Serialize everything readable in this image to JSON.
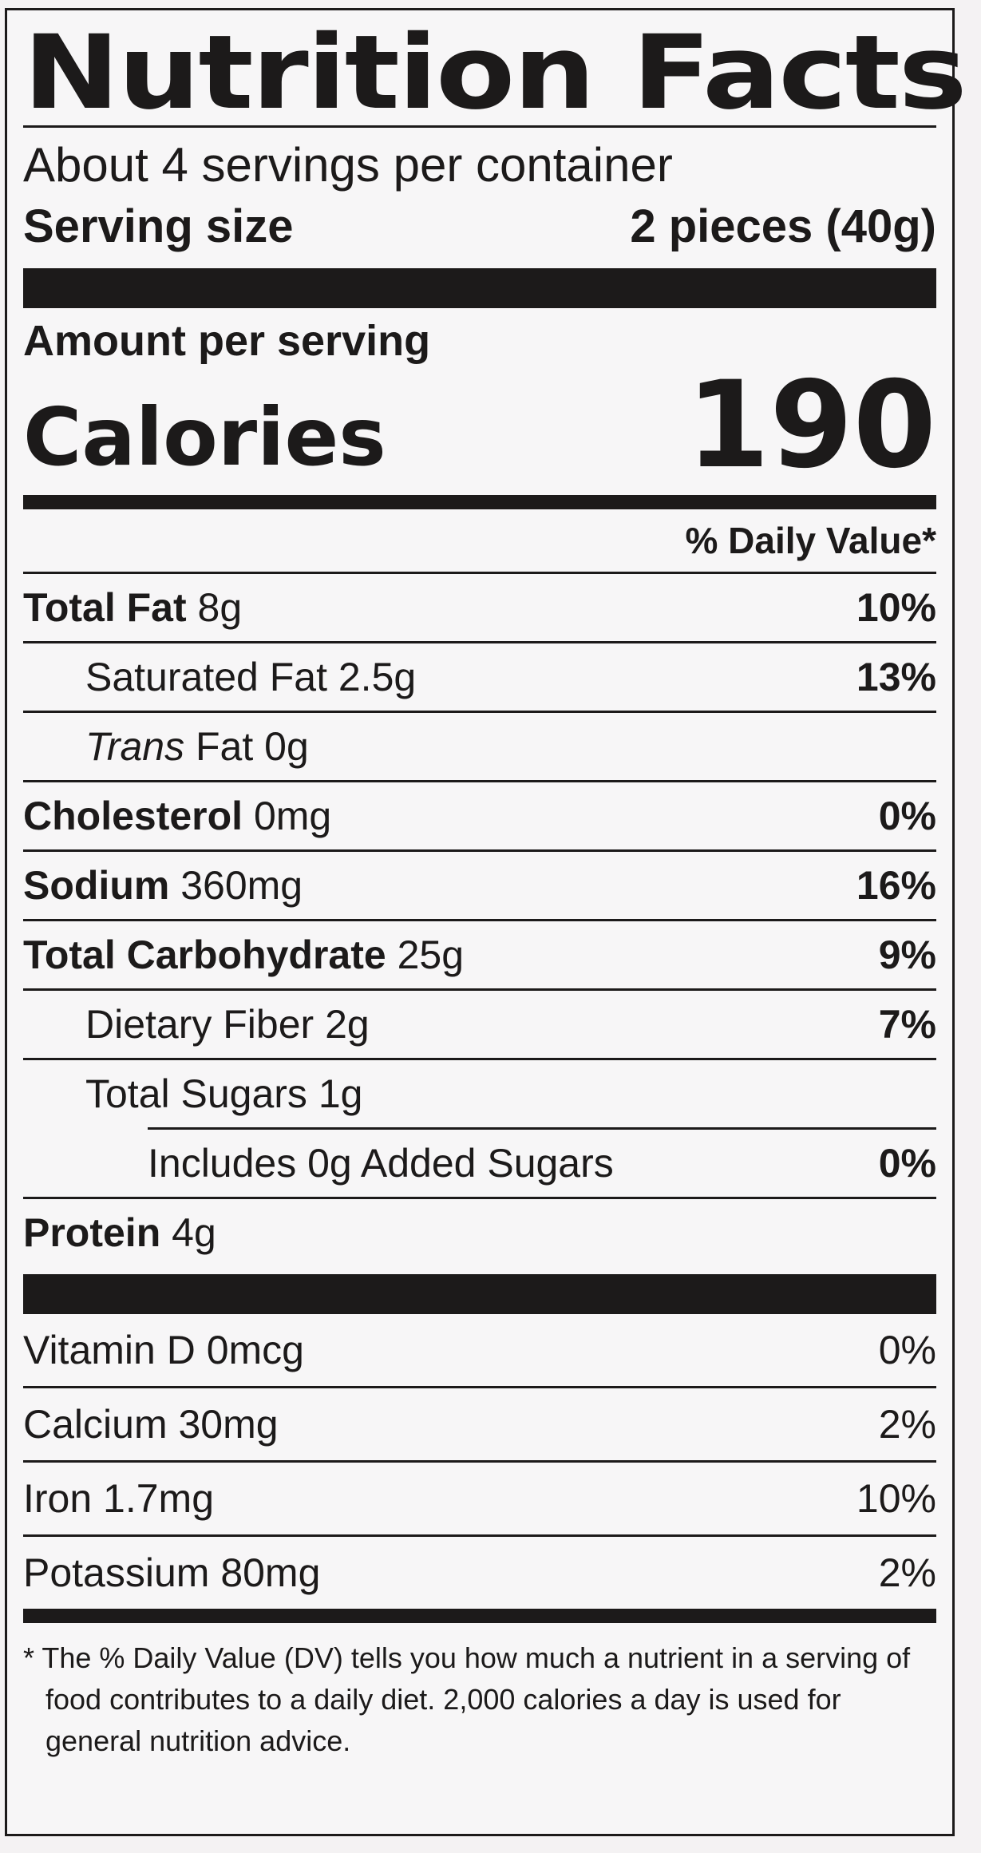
{
  "label": {
    "title": "Nutrition Facts",
    "servings_per_container": "About 4 servings per container",
    "serving_size_label": "Serving size",
    "serving_size_value": "2 pieces (40g)",
    "amount_per_serving": "Amount per serving",
    "calories_label": "Calories",
    "calories_value": "190",
    "dv_header": "% Daily Value*",
    "nutrients": [
      {
        "name": "Total Fat",
        "amount": "8g",
        "dv": "10%"
      },
      {
        "name": "Saturated Fat",
        "amount": "2.5g",
        "dv": "13%"
      },
      {
        "name_italic": "Trans",
        "name": "Fat",
        "amount": "0g",
        "dv": ""
      },
      {
        "name": "Cholesterol",
        "amount": "0mg",
        "dv": "0%"
      },
      {
        "name": "Sodium",
        "amount": "360mg",
        "dv": "16%"
      },
      {
        "name": "Total Carbohydrate",
        "amount": "25g",
        "dv": "9%"
      },
      {
        "name": "Dietary Fiber",
        "amount": "2g",
        "dv": "7%"
      },
      {
        "name": "Total Sugars",
        "amount": "1g",
        "dv": ""
      },
      {
        "name": "Includes 0g Added Sugars",
        "amount": "",
        "dv": "0%"
      },
      {
        "name": "Protein",
        "amount": "4g",
        "dv": ""
      }
    ],
    "vitamins": [
      {
        "name": "Vitamin D 0mcg",
        "dv": "0%"
      },
      {
        "name": "Calcium 30mg",
        "dv": "2%"
      },
      {
        "name": "Iron 1.7mg",
        "dv": "10%"
      },
      {
        "name": "Potassium 80mg",
        "dv": "2%"
      }
    ],
    "footnote": "* The % Daily Value (DV) tells you how much a nutrient in a serving of food contributes to a daily diet. 2,000 calories a day is used for general nutrition advice."
  }
}
